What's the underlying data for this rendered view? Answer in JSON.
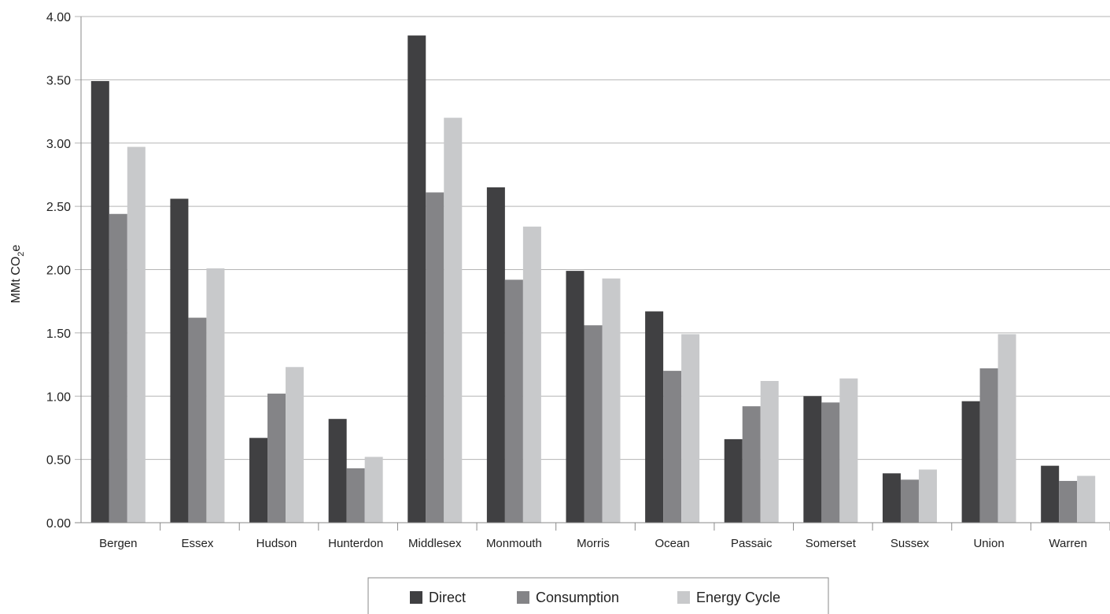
{
  "chart_data": {
    "type": "bar",
    "title": "",
    "xlabel": "",
    "ylabel": "MMt CO2e",
    "ylabel_parts": {
      "main": "MMt CO",
      "sub": "2",
      "suffix": "e"
    },
    "ylim": [
      0,
      4.0
    ],
    "yticks": [
      0,
      0.5,
      1.0,
      1.5,
      2.0,
      2.5,
      3.0,
      3.5,
      4.0
    ],
    "ytick_labels": [
      "0.00",
      "0.50",
      "1.00",
      "1.50",
      "2.00",
      "2.50",
      "3.00",
      "3.50",
      "4.00"
    ],
    "grid": true,
    "legend_position": "bottom-center",
    "categories": [
      "Bergen",
      "Essex",
      "Hudson",
      "Hunterdon",
      "Middlesex",
      "Monmouth",
      "Morris",
      "Ocean",
      "Passaic",
      "Somerset",
      "Sussex",
      "Union",
      "Warren"
    ],
    "series": [
      {
        "name": "Direct",
        "color": "#404042",
        "values": [
          3.49,
          2.56,
          0.67,
          0.82,
          3.85,
          2.65,
          1.99,
          1.67,
          0.66,
          1.0,
          0.39,
          0.96,
          0.45
        ]
      },
      {
        "name": "Consumption",
        "color": "#848487",
        "values": [
          2.44,
          1.62,
          1.02,
          0.43,
          2.61,
          1.92,
          1.56,
          1.2,
          0.92,
          0.95,
          0.34,
          1.22,
          0.33
        ]
      },
      {
        "name": "Energy Cycle",
        "color": "#c8c9cb",
        "values": [
          2.97,
          2.01,
          1.23,
          0.52,
          3.2,
          2.34,
          1.93,
          1.49,
          1.12,
          1.14,
          0.42,
          1.49,
          0.37
        ]
      }
    ]
  }
}
